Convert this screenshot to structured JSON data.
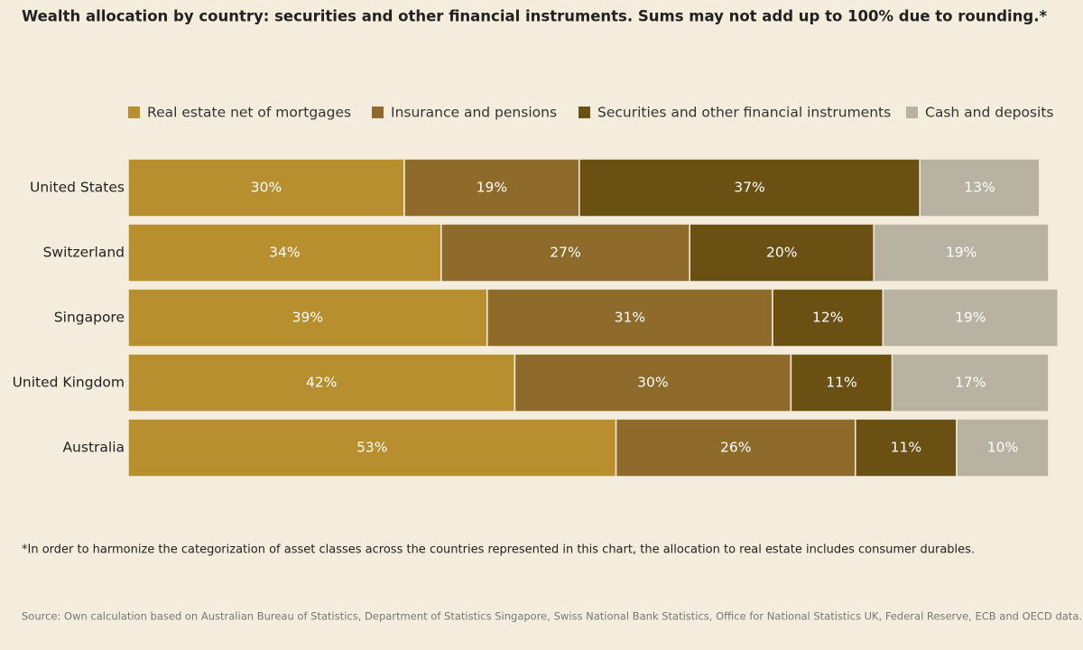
{
  "chart_data": {
    "type": "stacked-bar-horizontal",
    "title": "Wealth allocation by country: securities and other financial instruments. Sums may not add up to 100% due to rounding.*",
    "categories": [
      "United States",
      "Switzerland",
      "Singapore",
      "United Kingdom",
      "Australia"
    ],
    "series": [
      {
        "name": "Real estate net of mortgages",
        "color": "#b88f2e",
        "values": [
          30,
          34,
          39,
          42,
          53
        ],
        "value_labels": [
          "30%",
          "34%",
          "39%",
          "42%",
          "53%"
        ]
      },
      {
        "name": "Insurance and pensions",
        "color": "#8f6b2b",
        "values": [
          19,
          27,
          31,
          30,
          26
        ],
        "value_labels": [
          "19%",
          "27%",
          "31%",
          "30%",
          "26%"
        ]
      },
      {
        "name": "Securities and other financial instruments",
        "color": "#6b5014",
        "values": [
          37,
          20,
          12,
          11,
          11
        ],
        "value_labels": [
          "37%",
          "20%",
          "12%",
          "11%",
          "11%"
        ]
      },
      {
        "name": "Cash and deposits",
        "color": "#b8b2a2",
        "values": [
          13,
          19,
          19,
          17,
          10
        ],
        "value_labels": [
          "13%",
          "19%",
          "19%",
          "17%",
          "10%"
        ]
      }
    ],
    "xlim": [
      0,
      100
    ],
    "footnote": "*In order to harmonize the categorization of asset classes across the countries represented in this chart, the allocation to real estate includes consumer durables.",
    "source": "Source: Own calculation based on Australian Bureau of Statistics, Department of Statistics Singapore, Swiss National Bank Statistics, Office for National Statistics UK, Federal Reserve, ECB and OECD data."
  }
}
